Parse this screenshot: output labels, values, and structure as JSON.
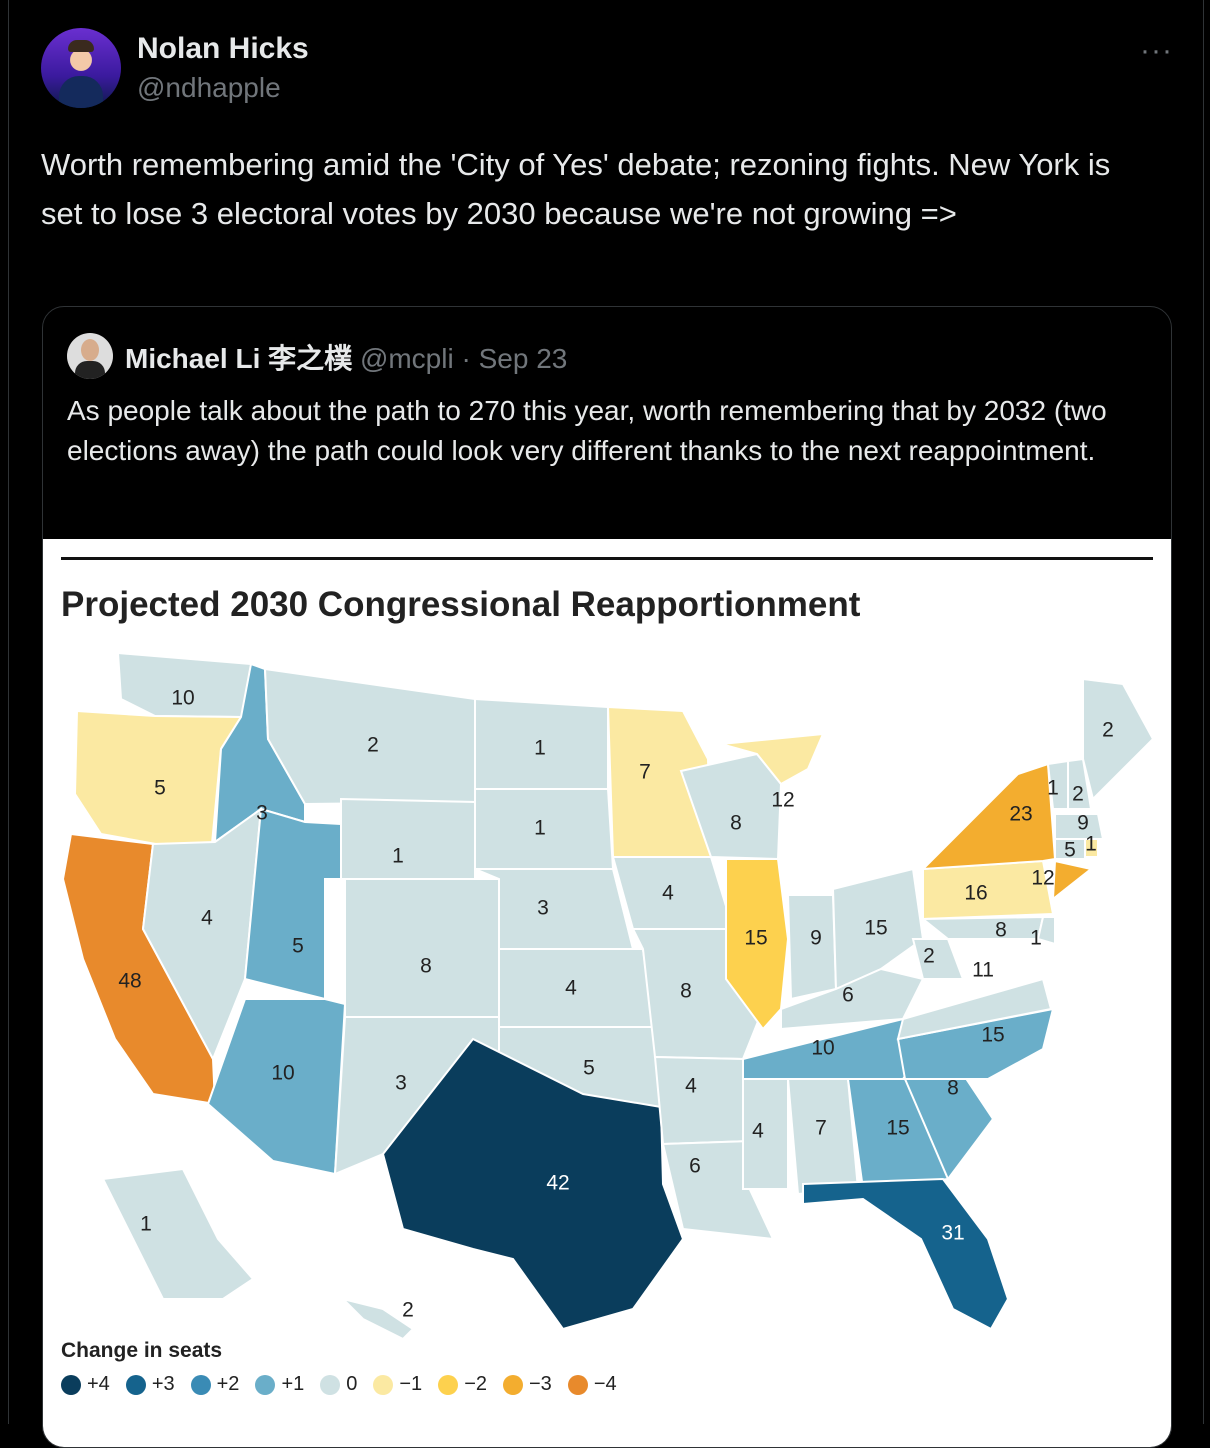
{
  "tweet": {
    "author_name": "Nolan Hicks",
    "author_handle": "@ndhapple",
    "more_icon": "···",
    "text": "Worth remembering amid the 'City of Yes' debate; rezoning fights. New York is set to lose 3 electoral votes by 2030 because we're not growing =>"
  },
  "quote": {
    "author_name": "Michael Li 李之樸",
    "author_handle": "@mcpli",
    "date": "· Sep 23",
    "text": "As people talk about the path to 270 this year, worth remembering that by 2032 (two elections away) the path could look very different thanks to the next reappointment."
  },
  "chart_data": {
    "type": "map",
    "title": "Projected 2030 Congressional Reapportionment",
    "legend_title": "Change in seats",
    "legend": [
      {
        "label": "+4",
        "color": "#0a3d5c"
      },
      {
        "label": "+3",
        "color": "#15638d"
      },
      {
        "label": "+2",
        "color": "#3a8bb5"
      },
      {
        "label": "+1",
        "color": "#6aaec9"
      },
      {
        "label": "0",
        "color": "#cfe1e3"
      },
      {
        "label": "−1",
        "color": "#fbe9a2"
      },
      {
        "label": "−2",
        "color": "#fdd14e"
      },
      {
        "label": "−3",
        "color": "#f3ad2f"
      },
      {
        "label": "−4",
        "color": "#e88a2c"
      }
    ],
    "states": [
      {
        "state": "WA",
        "seats": 10,
        "change": 0
      },
      {
        "state": "OR",
        "seats": 5,
        "change": -1
      },
      {
        "state": "CA",
        "seats": 48,
        "change": -4
      },
      {
        "state": "ID",
        "seats": 3,
        "change": 1
      },
      {
        "state": "NV",
        "seats": 4,
        "change": 0
      },
      {
        "state": "MT",
        "seats": 2,
        "change": 0
      },
      {
        "state": "WY",
        "seats": 1,
        "change": 0
      },
      {
        "state": "UT",
        "seats": 5,
        "change": 1
      },
      {
        "state": "AZ",
        "seats": 10,
        "change": 1
      },
      {
        "state": "CO",
        "seats": 8,
        "change": 0
      },
      {
        "state": "NM",
        "seats": 3,
        "change": 0
      },
      {
        "state": "ND",
        "seats": 1,
        "change": 0
      },
      {
        "state": "SD",
        "seats": 1,
        "change": 0
      },
      {
        "state": "NE",
        "seats": 3,
        "change": 0
      },
      {
        "state": "KS",
        "seats": 4,
        "change": 0
      },
      {
        "state": "OK",
        "seats": 5,
        "change": 0
      },
      {
        "state": "TX",
        "seats": 42,
        "change": 4
      },
      {
        "state": "MN",
        "seats": 7,
        "change": -1
      },
      {
        "state": "IA",
        "seats": 4,
        "change": 0
      },
      {
        "state": "MO",
        "seats": 8,
        "change": 0
      },
      {
        "state": "AR",
        "seats": 4,
        "change": 0
      },
      {
        "state": "LA",
        "seats": 6,
        "change": 0
      },
      {
        "state": "WI",
        "seats": 8,
        "change": 0
      },
      {
        "state": "IL",
        "seats": 15,
        "change": -2
      },
      {
        "state": "MI",
        "seats": 12,
        "change": -1
      },
      {
        "state": "IN",
        "seats": 9,
        "change": 0
      },
      {
        "state": "OH",
        "seats": 15,
        "change": 0
      },
      {
        "state": "KY",
        "seats": 6,
        "change": 0
      },
      {
        "state": "TN",
        "seats": 10,
        "change": 1
      },
      {
        "state": "MS",
        "seats": 4,
        "change": 0
      },
      {
        "state": "AL",
        "seats": 7,
        "change": 0
      },
      {
        "state": "GA",
        "seats": 15,
        "change": 1
      },
      {
        "state": "FL",
        "seats": 31,
        "change": 3
      },
      {
        "state": "SC",
        "seats": 8,
        "change": 1
      },
      {
        "state": "NC",
        "seats": 15,
        "change": 1
      },
      {
        "state": "VA",
        "seats": 11,
        "change": 0
      },
      {
        "state": "WV",
        "seats": 2,
        "change": 0
      },
      {
        "state": "PA",
        "seats": 16,
        "change": -1
      },
      {
        "state": "NY",
        "seats": 23,
        "change": -3
      },
      {
        "state": "NJ",
        "seats": 12,
        "change": -3
      },
      {
        "state": "MD",
        "seats": 8,
        "change": 0
      },
      {
        "state": "DE",
        "seats": 1,
        "change": 0
      },
      {
        "state": "VT",
        "seats": 1,
        "change": 0
      },
      {
        "state": "NH",
        "seats": 2,
        "change": 0
      },
      {
        "state": "MA",
        "seats": 9,
        "change": 0
      },
      {
        "state": "CT",
        "seats": 5,
        "change": 0
      },
      {
        "state": "RI",
        "seats": 1,
        "change": -1
      },
      {
        "state": "ME",
        "seats": 2,
        "change": 0
      },
      {
        "state": "AK",
        "seats": 1,
        "change": 0
      },
      {
        "state": "HI",
        "seats": 2,
        "change": 0
      }
    ]
  }
}
